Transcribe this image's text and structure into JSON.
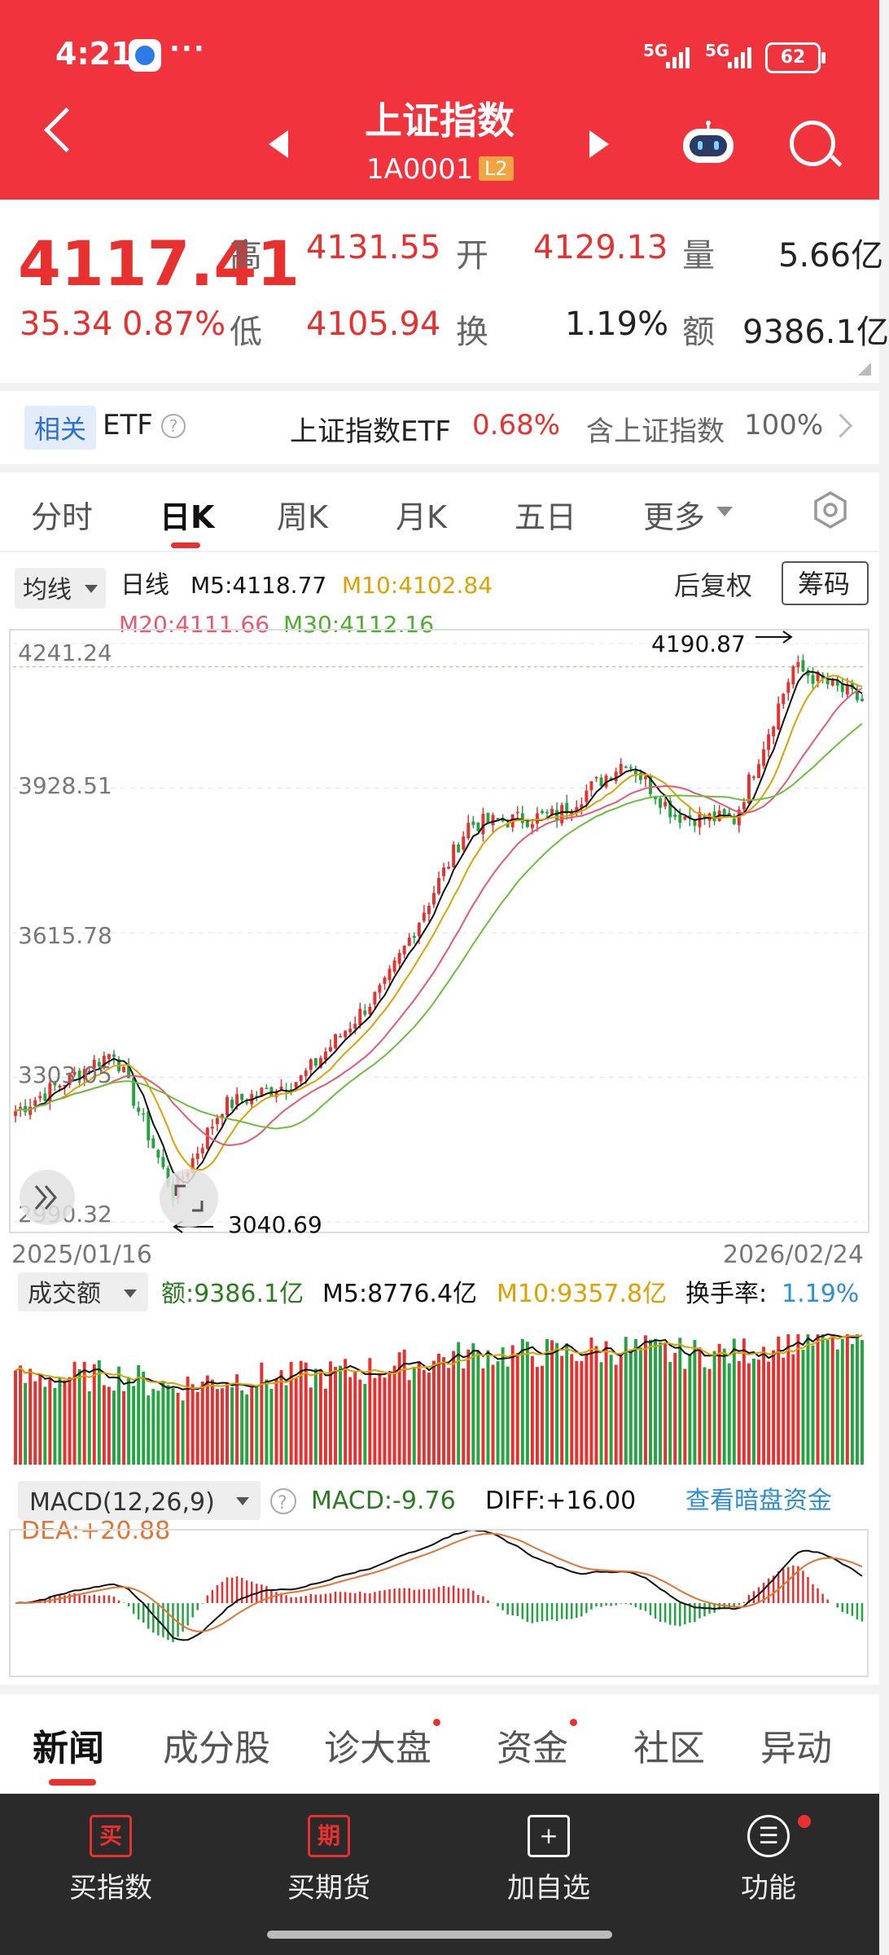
{
  "status_bar": {
    "time": "4:21",
    "more": "···",
    "signal1": "5G",
    "signal2": "5G",
    "battery": "62"
  },
  "header": {
    "title": "上证指数",
    "code": "1A0001",
    "badge": "L2"
  },
  "quote": {
    "price": "4117.41",
    "change": "35.34",
    "change_pct": "0.87%",
    "high_label": "高",
    "high": "4131.55",
    "open_label": "开",
    "open": "4129.13",
    "volume_label": "量",
    "volume": "5.66亿",
    "low_label": "低",
    "low": "4105.94",
    "turnover_label": "换",
    "turnover": "1.19%",
    "amount_label": "额",
    "amount": "9386.1亿"
  },
  "etf": {
    "tag": "相关",
    "label": "ETF",
    "name": "上证指数ETF",
    "pct": "0.68%",
    "contain": "含上证指数",
    "contain_pct": "100%"
  },
  "tabs": [
    "分时",
    "日K",
    "周K",
    "月K",
    "五日",
    "更多"
  ],
  "chart_header": {
    "ma_select": "均线",
    "period": "日线",
    "m5": "M5:4118.77",
    "m10": "M10:4102.84",
    "m20": "M20:4111.66",
    "m30": "M30:4112.16",
    "adjust": "后复权",
    "chip": "筹码"
  },
  "chart_data": {
    "type": "candlestick",
    "y_ticks": [
      "4241.24",
      "3928.51",
      "3615.78",
      "3303.05",
      "2990.32"
    ],
    "x_start": "2025/01/16",
    "x_end": "2026/02/24",
    "max_label": "4190.87",
    "min_label": "3040.69",
    "key_points": [
      [
        0,
        3230
      ],
      [
        20,
        3360
      ],
      [
        32,
        3050
      ],
      [
        42,
        3240
      ],
      [
        58,
        3300
      ],
      [
        75,
        3500
      ],
      [
        92,
        3850
      ],
      [
        110,
        3870
      ],
      [
        124,
        3990
      ],
      [
        134,
        3870
      ],
      [
        146,
        3860
      ],
      [
        158,
        4190
      ],
      [
        172,
        4117
      ]
    ],
    "colors": {
      "up": "#e8302f",
      "down": "#22a541",
      "m5": "#111111",
      "m10": "#e2a000",
      "m20": "#e8596f",
      "m30": "#6abf3b"
    }
  },
  "volume": {
    "select": "成交额",
    "amount": "额:9386.1亿",
    "m5": "M5:8776.4亿",
    "m10": "M10:9357.8亿",
    "rate_label": "换手率:",
    "rate": "1.19%"
  },
  "macd": {
    "select": "MACD(12,26,9)",
    "macd": "MACD:-9.76",
    "diff": "DIFF:+16.00",
    "dea": "DEA:+20.88",
    "link": "查看暗盘资金"
  },
  "bottom_tabs": [
    "新闻",
    "成分股",
    "诊大盘",
    "资金",
    "社区",
    "异动"
  ],
  "nav": [
    {
      "icon": "买",
      "label": "买指数"
    },
    {
      "icon": "期",
      "label": "买期货"
    },
    {
      "icon": "+",
      "label": "加自选"
    },
    {
      "icon": "☰",
      "label": "功能"
    }
  ]
}
